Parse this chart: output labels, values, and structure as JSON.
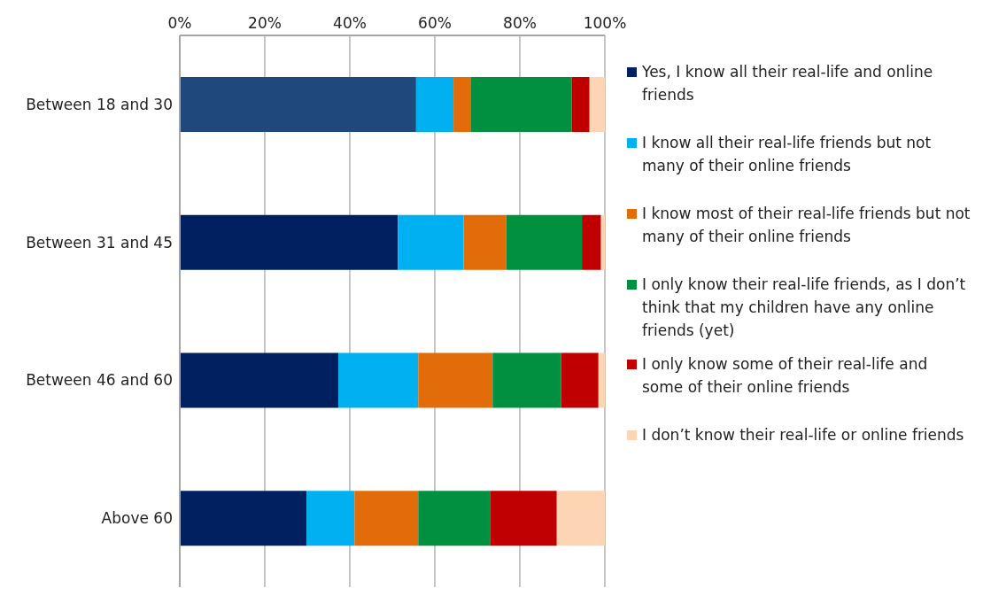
{
  "chart_data": {
    "type": "bar",
    "orientation": "horizontal",
    "stacked": true,
    "categories": [
      "Between 18 and 30",
      "Between 31 and 45",
      "Between 46 and 60",
      "Above 60"
    ],
    "series": [
      {
        "name": "Yes, I know all their real-life and online friends",
        "color": "#002060",
        "colors": [
          "#1f497d",
          "#002060",
          "#002060",
          "#002060"
        ],
        "values": [
          55.6,
          51.3,
          37.3,
          29.8
        ]
      },
      {
        "name": "I know all their real-life friends but not many of their online friends",
        "color": "#00b0f0",
        "values": [
          8.8,
          15.5,
          18.8,
          11.3
        ]
      },
      {
        "name": "I know most of their real-life friends but not many of their online friends",
        "color": "#e36c0a",
        "values": [
          4.0,
          10.0,
          17.5,
          15.0
        ]
      },
      {
        "name": "I only know their real-life friends, as I don’t think that my children have any online friends (yet)",
        "color": "#00903f",
        "values": [
          23.8,
          17.8,
          16.1,
          17.0
        ]
      },
      {
        "name": "I only know some of their real-life and some of their online friends",
        "color": "#c00000",
        "values": [
          4.2,
          4.5,
          8.8,
          15.6
        ]
      },
      {
        "name": "I don’t know their real-life or online friends",
        "color": "#fcd5b5",
        "values": [
          3.6,
          0.9,
          1.5,
          11.3
        ]
      }
    ],
    "xlim": [
      0,
      100
    ],
    "xticks": [
      {
        "value": 0,
        "label": "0%"
      },
      {
        "value": 20,
        "label": "20%"
      },
      {
        "value": 40,
        "label": "40%"
      },
      {
        "value": 60,
        "label": "60%"
      },
      {
        "value": 80,
        "label": "80%"
      },
      {
        "value": 100,
        "label": "100%"
      }
    ],
    "grid": "x",
    "legend": "right"
  }
}
